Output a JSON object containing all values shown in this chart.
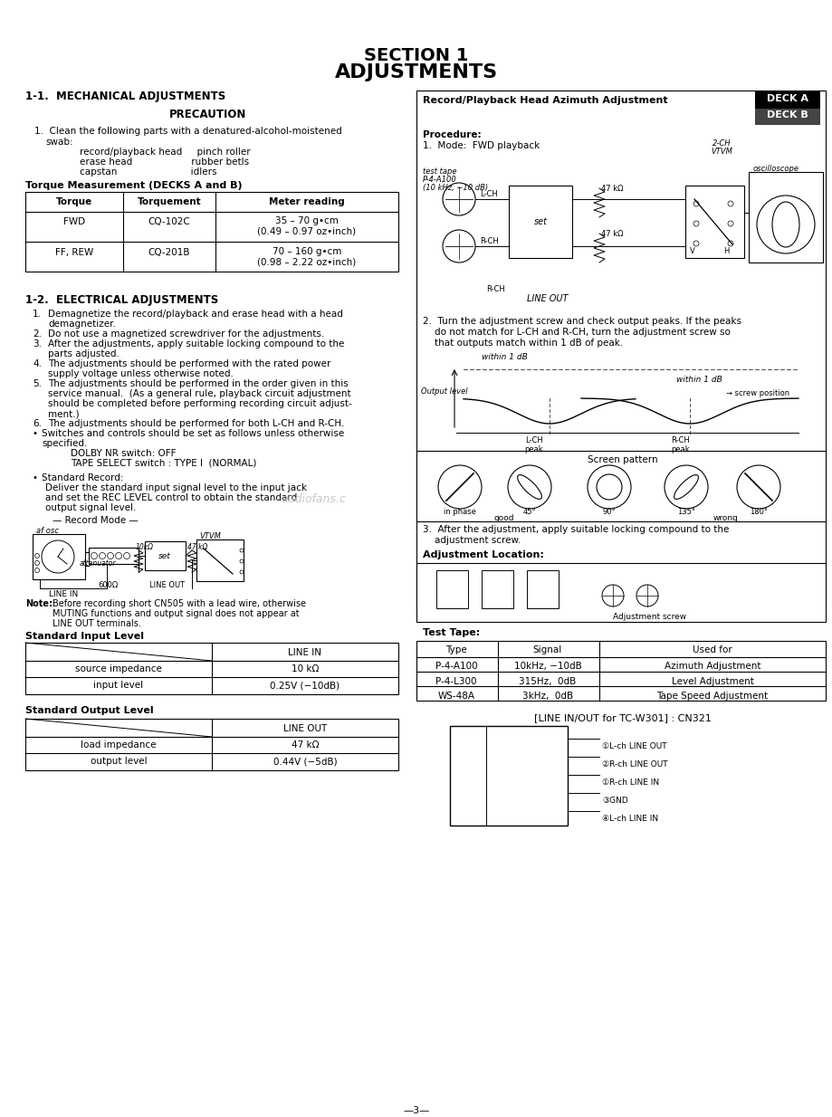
{
  "title1": "SECTION 1",
  "title2": "ADJUSTMENTS",
  "bg_color": "#ffffff",
  "page_number": "—3—",
  "section11_title": "1-1.  MECHANICAL ADJUSTMENTS",
  "precaution_title": "PRECAUTION",
  "torque_title": "Torque Measurement (DECKS A and B)",
  "torque_headers": [
    "Torque",
    "Torquement",
    "Meter reading"
  ],
  "torque_rows": [
    [
      "FWD",
      "CQ-102C",
      "35 – 70 g•cm",
      "(0.49 – 0.97 oz•inch)"
    ],
    [
      "FF, REW",
      "CQ-201B",
      "70 – 160 g•cm",
      "(0.98 – 2.22 oz•inch)"
    ]
  ],
  "section12_title": "1-2.  ELECTRICAL ADJUSTMENTS",
  "std_input_title": "Standard Input Level",
  "std_output_title": "Standard Output Level",
  "right_box_title": "Record/Playback Head Azimuth Adjustment",
  "deck_a_label": "DECK A",
  "deck_b_label": "DECK B",
  "test_tape_section_title": "Test Tape:",
  "test_tape_headers": [
    "Type",
    "Signal",
    "Used for"
  ],
  "test_tape_rows": [
    [
      "P-4-A100",
      "10kHz, −10dB",
      "Azimuth Adjustment"
    ],
    [
      "P-4-L300",
      "315Hz,  0dB",
      "Level Adjustment"
    ],
    [
      "WS-48A",
      "3kHz,  0dB",
      "Tape Speed Adjustment"
    ]
  ],
  "cn321_title": "[LINE IN/OUT for TC-W301] : CN321",
  "cn321_pins": [
    "①L-ch LINE OUT",
    "②R-ch LINE OUT",
    "①R-ch LINE IN",
    "③GND",
    "④L-ch LINE IN"
  ],
  "watermark": "audiofans.c"
}
